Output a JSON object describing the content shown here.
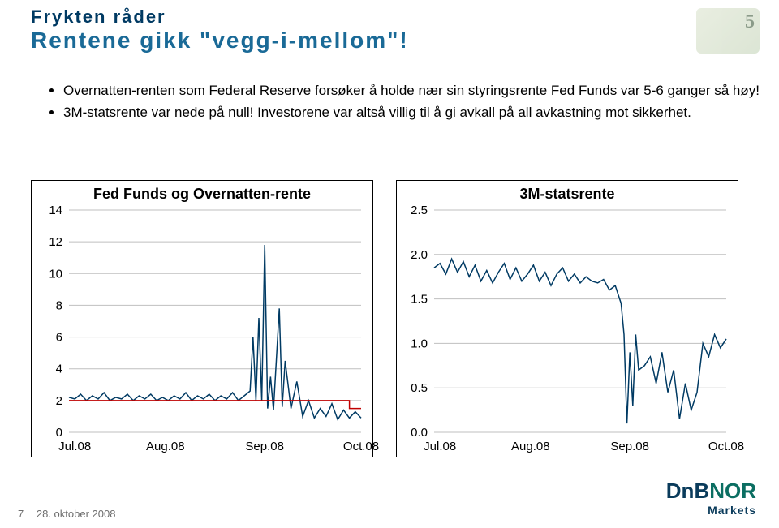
{
  "titles": {
    "line1": "Frykten råder",
    "line2": "Rentene gikk \"vegg-i-mellom\"!"
  },
  "bullets": [
    "Overnatten-renten som Federal Reserve forsøker å holde nær sin styringsrente Fed Funds var 5-6 ganger så høy!",
    "3M-statsrente var nede på null! Investorene var altså villig til å gi avkall på all avkastning mot sikkerhet."
  ],
  "chart_left": {
    "title": "Fed Funds og Overnatten-rente",
    "type": "line",
    "bg": "#ffffff",
    "border": "#000000",
    "yaxis": {
      "min": 0,
      "max": 14,
      "ticks": [
        0,
        2,
        4,
        6,
        8,
        10,
        12,
        14
      ]
    },
    "xaxis": {
      "min": 0,
      "max": 100,
      "ticks": [
        2,
        33,
        67,
        100
      ],
      "labels": [
        "Jul.08",
        "Aug.08",
        "Sep.08",
        "Oct.08"
      ]
    },
    "gridline_color": "#bfbfbf",
    "series": [
      {
        "name": "Overnatten-rente",
        "color": "#003a63",
        "width": 1.5,
        "points": [
          [
            0,
            2.2
          ],
          [
            2,
            2.1
          ],
          [
            4,
            2.4
          ],
          [
            6,
            2.0
          ],
          [
            8,
            2.3
          ],
          [
            10,
            2.1
          ],
          [
            12,
            2.5
          ],
          [
            14,
            2.0
          ],
          [
            16,
            2.2
          ],
          [
            18,
            2.1
          ],
          [
            20,
            2.4
          ],
          [
            22,
            2.0
          ],
          [
            24,
            2.3
          ],
          [
            26,
            2.1
          ],
          [
            28,
            2.4
          ],
          [
            30,
            2.0
          ],
          [
            32,
            2.2
          ],
          [
            34,
            2.0
          ],
          [
            36,
            2.3
          ],
          [
            38,
            2.1
          ],
          [
            40,
            2.5
          ],
          [
            42,
            2.0
          ],
          [
            44,
            2.3
          ],
          [
            46,
            2.1
          ],
          [
            48,
            2.4
          ],
          [
            50,
            2.0
          ],
          [
            52,
            2.3
          ],
          [
            54,
            2.1
          ],
          [
            56,
            2.5
          ],
          [
            58,
            2.0
          ],
          [
            60,
            2.3
          ],
          [
            62,
            2.6
          ],
          [
            63,
            6.0
          ],
          [
            64,
            2.0
          ],
          [
            65,
            7.2
          ],
          [
            66,
            2.0
          ],
          [
            67,
            11.8
          ],
          [
            68,
            1.5
          ],
          [
            69,
            3.5
          ],
          [
            70,
            1.4
          ],
          [
            72,
            7.8
          ],
          [
            73,
            1.6
          ],
          [
            74,
            4.5
          ],
          [
            76,
            1.5
          ],
          [
            78,
            3.2
          ],
          [
            80,
            1.0
          ],
          [
            82,
            2.0
          ],
          [
            84,
            0.9
          ],
          [
            86,
            1.5
          ],
          [
            88,
            1.0
          ],
          [
            90,
            1.8
          ],
          [
            92,
            0.8
          ],
          [
            94,
            1.4
          ],
          [
            96,
            0.9
          ],
          [
            98,
            1.3
          ],
          [
            100,
            0.9
          ]
        ]
      },
      {
        "name": "Fed Funds",
        "color": "#c00000",
        "width": 2.2,
        "points": [
          [
            0,
            2.0
          ],
          [
            96,
            2.0
          ],
          [
            96,
            1.5
          ],
          [
            100,
            1.5
          ]
        ]
      }
    ]
  },
  "chart_right": {
    "title": "3M-statsrente",
    "type": "line",
    "bg": "#ffffff",
    "border": "#000000",
    "yaxis": {
      "min": 0.0,
      "max": 2.5,
      "ticks": [
        0.0,
        0.5,
        1.0,
        1.5,
        2.0,
        2.5
      ],
      "decimals": 1
    },
    "xaxis": {
      "min": 0,
      "max": 100,
      "ticks": [
        2,
        33,
        67,
        100
      ],
      "labels": [
        "Jul.08",
        "Aug.08",
        "Sep.08",
        "Oct.08"
      ]
    },
    "gridline_color": "#bfbfbf",
    "series": [
      {
        "name": "3M-statsrente",
        "color": "#003a63",
        "width": 1.5,
        "points": [
          [
            0,
            1.85
          ],
          [
            2,
            1.9
          ],
          [
            4,
            1.78
          ],
          [
            6,
            1.95
          ],
          [
            8,
            1.8
          ],
          [
            10,
            1.92
          ],
          [
            12,
            1.75
          ],
          [
            14,
            1.88
          ],
          [
            16,
            1.7
          ],
          [
            18,
            1.82
          ],
          [
            20,
            1.68
          ],
          [
            22,
            1.8
          ],
          [
            24,
            1.9
          ],
          [
            26,
            1.72
          ],
          [
            28,
            1.85
          ],
          [
            30,
            1.7
          ],
          [
            32,
            1.78
          ],
          [
            34,
            1.88
          ],
          [
            36,
            1.7
          ],
          [
            38,
            1.8
          ],
          [
            40,
            1.65
          ],
          [
            42,
            1.78
          ],
          [
            44,
            1.85
          ],
          [
            46,
            1.7
          ],
          [
            48,
            1.78
          ],
          [
            50,
            1.68
          ],
          [
            52,
            1.75
          ],
          [
            54,
            1.7
          ],
          [
            56,
            1.68
          ],
          [
            58,
            1.72
          ],
          [
            60,
            1.6
          ],
          [
            62,
            1.65
          ],
          [
            64,
            1.45
          ],
          [
            65,
            1.1
          ],
          [
            66,
            0.1
          ],
          [
            67,
            0.9
          ],
          [
            68,
            0.3
          ],
          [
            69,
            1.1
          ],
          [
            70,
            0.7
          ],
          [
            72,
            0.75
          ],
          [
            74,
            0.85
          ],
          [
            76,
            0.55
          ],
          [
            78,
            0.9
          ],
          [
            80,
            0.45
          ],
          [
            82,
            0.7
          ],
          [
            84,
            0.15
          ],
          [
            86,
            0.55
          ],
          [
            88,
            0.25
          ],
          [
            90,
            0.45
          ],
          [
            92,
            1.0
          ],
          [
            94,
            0.85
          ],
          [
            96,
            1.1
          ],
          [
            98,
            0.95
          ],
          [
            100,
            1.05
          ]
        ]
      }
    ]
  },
  "footer": {
    "page": "7",
    "date": "28. oktober 2008"
  },
  "logo": {
    "brand1": "DnB",
    "brand2": "NOR",
    "sub": "Markets",
    "color1": "#0a3b5b",
    "color2": "#0b6e62"
  }
}
